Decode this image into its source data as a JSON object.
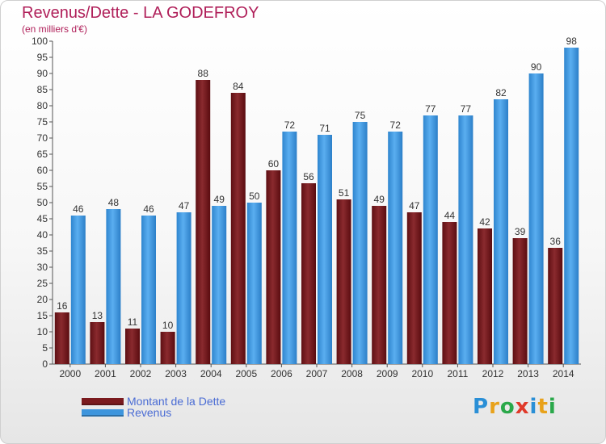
{
  "title": "Revenus/Dette - LA GODEFROY",
  "subtitle": "(en milliers d'€)",
  "chart_data": {
    "type": "bar",
    "categories": [
      "2000",
      "2001",
      "2002",
      "2003",
      "2004",
      "2005",
      "2006",
      "2007",
      "2008",
      "2009",
      "2010",
      "2011",
      "2012",
      "2013",
      "2014"
    ],
    "series": [
      {
        "name": "Montant de la Dette",
        "values": [
          16,
          13,
          11,
          10,
          88,
          84,
          60,
          56,
          51,
          49,
          47,
          44,
          42,
          39,
          36
        ],
        "color": "#7a1a1e"
      },
      {
        "name": "Revenus",
        "values": [
          46,
          48,
          46,
          47,
          49,
          50,
          72,
          71,
          75,
          72,
          77,
          77,
          82,
          90,
          98
        ],
        "color": "#3d95dd"
      }
    ],
    "data_labels": [
      [
        "16",
        "13",
        "11",
        "10",
        "88",
        "84",
        "60",
        "56",
        "51",
        "49",
        "47",
        "44",
        "42",
        "39",
        "36"
      ],
      [
        "46",
        "48",
        "46",
        "47",
        "49",
        "50",
        "72",
        "71",
        "75",
        "72",
        "77",
        "77",
        "82",
        "90",
        "98"
      ]
    ],
    "ylim": [
      0,
      100
    ],
    "yticks": [
      "0",
      "5",
      "10",
      "15",
      "20",
      "25",
      "30",
      "35",
      "40",
      "45",
      "50",
      "55",
      "60",
      "65",
      "70",
      "75",
      "80",
      "85",
      "90",
      "95",
      "100"
    ],
    "grid": false,
    "legend_position": "bottom-left"
  },
  "legend": [
    {
      "label": "Montant de la Dette",
      "color": "#7a1a1e"
    },
    {
      "label": "Revenus",
      "color": "#3d95dd"
    }
  ],
  "logo": {
    "text": "Proxiti"
  }
}
